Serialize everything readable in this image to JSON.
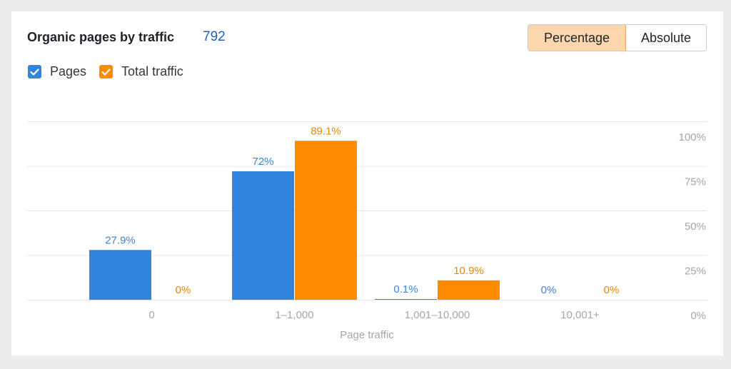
{
  "header": {
    "title": "Organic pages by traffic",
    "count": "792"
  },
  "toggle": {
    "options": [
      "Percentage",
      "Absolute"
    ],
    "selected": "Percentage"
  },
  "legend": {
    "items": [
      {
        "label": "Pages",
        "checked": true,
        "color": "#2f86dc",
        "icon": "checkbox-checked-icon"
      },
      {
        "label": "Total traffic",
        "checked": true,
        "color": "#ff8c00",
        "icon": "checkbox-checked-icon"
      }
    ]
  },
  "colors": {
    "pages": "#2f86dc",
    "pages_label": "#3f84cc",
    "traffic": "#ff8c00",
    "traffic_label": "#e8870a",
    "grid": "#e6e8eb",
    "axis_text": "#a3a7ad"
  },
  "chart_data": {
    "type": "bar",
    "xlabel": "Page traffic",
    "ylabel": "",
    "categories": [
      "0",
      "1–1,000",
      "1,001–10,000",
      "10,001+"
    ],
    "series": [
      {
        "name": "Pages",
        "values": [
          27.9,
          72,
          0.1,
          0
        ],
        "labels": [
          "27.9%",
          "72%",
          "0.1%",
          "0%"
        ]
      },
      {
        "name": "Total traffic",
        "values": [
          0,
          89.1,
          10.9,
          0
        ],
        "labels": [
          "0%",
          "89.1%",
          "10.9%",
          "0%"
        ]
      }
    ],
    "yticks": [
      "0%",
      "25%",
      "50%",
      "75%",
      "100%"
    ],
    "ylim": [
      0,
      100
    ],
    "y_axis_position": "right",
    "grid": true,
    "legend_position": "top-left"
  }
}
